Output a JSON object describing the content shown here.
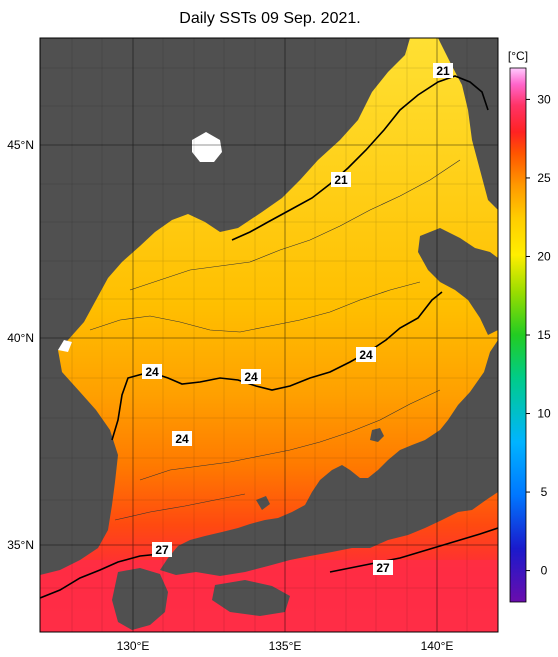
{
  "title": "Daily SSTs 09 Sep. 2021.",
  "colorbar": {
    "unit": "[°C]",
    "ticks": [
      "0",
      "5",
      "10",
      "15",
      "20",
      "25",
      "30"
    ],
    "tick_values": [
      0,
      5,
      10,
      15,
      20,
      25,
      30
    ],
    "range": [
      -2,
      32
    ],
    "colors": [
      "#6a0dad",
      "#1a1acc",
      "#0077ff",
      "#00b4ff",
      "#00cc88",
      "#22cc22",
      "#99dd00",
      "#ffee00",
      "#ffcc00",
      "#ff9900",
      "#ff5500",
      "#ff2222",
      "#ff3366",
      "#ff66cc",
      "#ffccff"
    ]
  },
  "axes": {
    "lat_labels": [
      "45°N",
      "40°N",
      "35°N"
    ],
    "lat_values": [
      45,
      40,
      35
    ],
    "lon_labels": [
      "130°E",
      "135°E",
      "140°E"
    ],
    "lon_values": [
      130,
      135,
      140
    ],
    "lon_range": [
      127,
      142
    ],
    "lat_range": [
      33,
      47.5
    ]
  },
  "contours": [
    {
      "text": "21",
      "value": 21
    },
    {
      "text": "21",
      "value": 21
    },
    {
      "text": "24",
      "value": 24
    },
    {
      "text": "24",
      "value": 24
    },
    {
      "text": "24",
      "value": 24
    },
    {
      "text": "24",
      "value": 24
    },
    {
      "text": "27",
      "value": 27
    },
    {
      "text": "27",
      "value": 27
    }
  ],
  "colors": {
    "land": "#505050",
    "grid": "#000000",
    "sst_north": "#ffd21e",
    "sst_mid": "#ffb400",
    "sst_south": "#ff6a00",
    "sst_warm": "#ff2a3a"
  }
}
